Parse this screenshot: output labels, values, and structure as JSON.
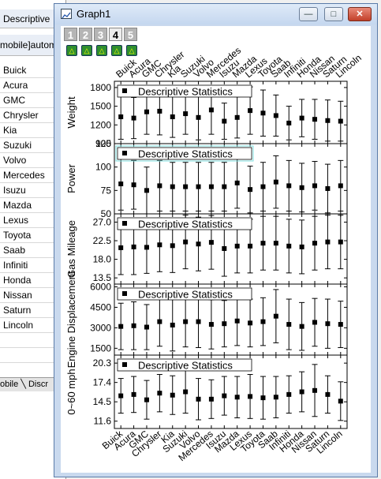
{
  "worksheet": {
    "header1": "Descriptive",
    "header2": "mobile]autom",
    "rows": [
      "Buick",
      "Acura",
      "GMC",
      "Chrysler",
      "Kia",
      "Suzuki",
      "Volvo",
      "Mercedes",
      "Isuzu",
      "Mazda",
      "Lexus",
      "Toyota",
      "Saab",
      "Infiniti",
      "Honda",
      "Nissan",
      "Saturn",
      "Lincoln"
    ],
    "tabs_label": "obile ╲ Discr"
  },
  "window": {
    "title": "Graph1",
    "minimize_label": "—",
    "maximize_label": "□",
    "close_label": "✕"
  },
  "layer_tabs": [
    "1",
    "2",
    "3",
    "4",
    "5"
  ],
  "active_layer": "4",
  "lock_icon_glyph": "△",
  "colors": {
    "accent": "#5a7ba8",
    "plot_frame": "#000000",
    "selection": "#7fe0e0"
  },
  "chart_data": {
    "type": "scatter",
    "categories": [
      "Buick",
      "Acura",
      "GMC",
      "Chrysler",
      "Kia",
      "Suzuki",
      "Volvo",
      "Mercedes",
      "Isuzu",
      "Mazda",
      "Lexus",
      "Toyota",
      "Saab",
      "Infiniti",
      "Honda",
      "Nissan",
      "Saturn",
      "Lincoln"
    ],
    "panels": [
      {
        "ylabel": "Weight",
        "legend": "Descriptive Statistics",
        "ylim": [
          900,
          1900
        ],
        "ticks": [
          "1800",
          "1500",
          "1200",
          "900"
        ],
        "tick_values": [
          1800,
          1500,
          1200,
          900
        ],
        "mean": [
          1330,
          1310,
          1410,
          1420,
          1330,
          1380,
          1320,
          1440,
          1260,
          1320,
          1430,
          1390,
          1350,
          1230,
          1310,
          1290,
          1270,
          1260
        ],
        "sd": [
          360,
          330,
          360,
          380,
          330,
          330,
          360,
          390,
          290,
          330,
          380,
          370,
          330,
          270,
          300,
          320,
          330,
          320
        ]
      },
      {
        "ylabel": "Power",
        "legend": "Descriptive Statistics",
        "ylim": [
          50,
          125
        ],
        "ticks": [
          "125",
          "100",
          "75",
          "50"
        ],
        "tick_values": [
          125,
          100,
          75,
          50
        ],
        "mean": [
          82,
          81,
          75,
          80,
          79,
          79,
          79,
          79,
          79,
          83,
          76,
          79,
          84,
          80,
          78,
          80,
          77,
          80
        ],
        "sd": [
          28,
          26,
          25,
          27,
          26,
          26,
          26,
          26,
          26,
          27,
          25,
          26,
          28,
          27,
          26,
          26,
          26,
          27
        ]
      },
      {
        "ylabel": "Gas Mileage",
        "legend": "Descriptive Statistics",
        "ylim": [
          12,
          29
        ],
        "ticks": [
          "27.0",
          "22.5",
          "18.0",
          "13.5"
        ],
        "tick_values": [
          27,
          22.5,
          18,
          13.5
        ],
        "mean": [
          20.8,
          21.0,
          20.9,
          21.5,
          21.3,
          22.2,
          21.7,
          22.1,
          20.6,
          21.2,
          21.2,
          21.9,
          21.9,
          21.2,
          21.0,
          21.9,
          22.2,
          22.2
        ],
        "sd": [
          6.5,
          6.7,
          6.3,
          6.5,
          6.5,
          6.5,
          6.5,
          6.5,
          6.7,
          6.5,
          6.5,
          6.5,
          6.5,
          6.5,
          6.5,
          6.5,
          6.5,
          6.5
        ]
      },
      {
        "ylabel": "Engine Displacement",
        "legend": "Descriptive Statistics",
        "ylim": [
          1000,
          6200
        ],
        "ticks": [
          "6000",
          "4500",
          "3000",
          "1500"
        ],
        "tick_values": [
          6000,
          4500,
          3000,
          1500
        ],
        "mean": [
          3100,
          3150,
          3050,
          3450,
          3200,
          3450,
          3450,
          3250,
          3300,
          3500,
          3350,
          3450,
          3850,
          3250,
          3100,
          3400,
          3300,
          3250
        ],
        "sd": [
          1700,
          1750,
          1650,
          1800,
          1900,
          1850,
          1900,
          1800,
          1700,
          1800,
          1750,
          1750,
          1950,
          1850,
          1750,
          1750,
          1800,
          1700
        ]
      },
      {
        "ylabel": "0~60 mph",
        "legend": "Descriptive Statistics",
        "ylim": [
          10.5,
          21.5
        ],
        "ticks": [
          "20.3",
          "17.4",
          "14.5",
          "11.6"
        ],
        "tick_values": [
          20.3,
          17.4,
          14.5,
          11.6
        ],
        "mean": [
          15.4,
          15.6,
          14.8,
          15.8,
          15.5,
          16.0,
          14.9,
          14.9,
          15.4,
          15.2,
          15.3,
          15.1,
          15.2,
          15.6,
          16.0,
          16.2,
          15.6,
          14.6
        ],
        "sd": [
          2.6,
          2.7,
          2.9,
          2.8,
          2.9,
          3.2,
          3.1,
          2.9,
          2.9,
          3.1,
          3.3,
          3.2,
          3.1,
          2.8,
          3.0,
          3.9,
          2.8,
          2.9
        ]
      }
    ]
  }
}
